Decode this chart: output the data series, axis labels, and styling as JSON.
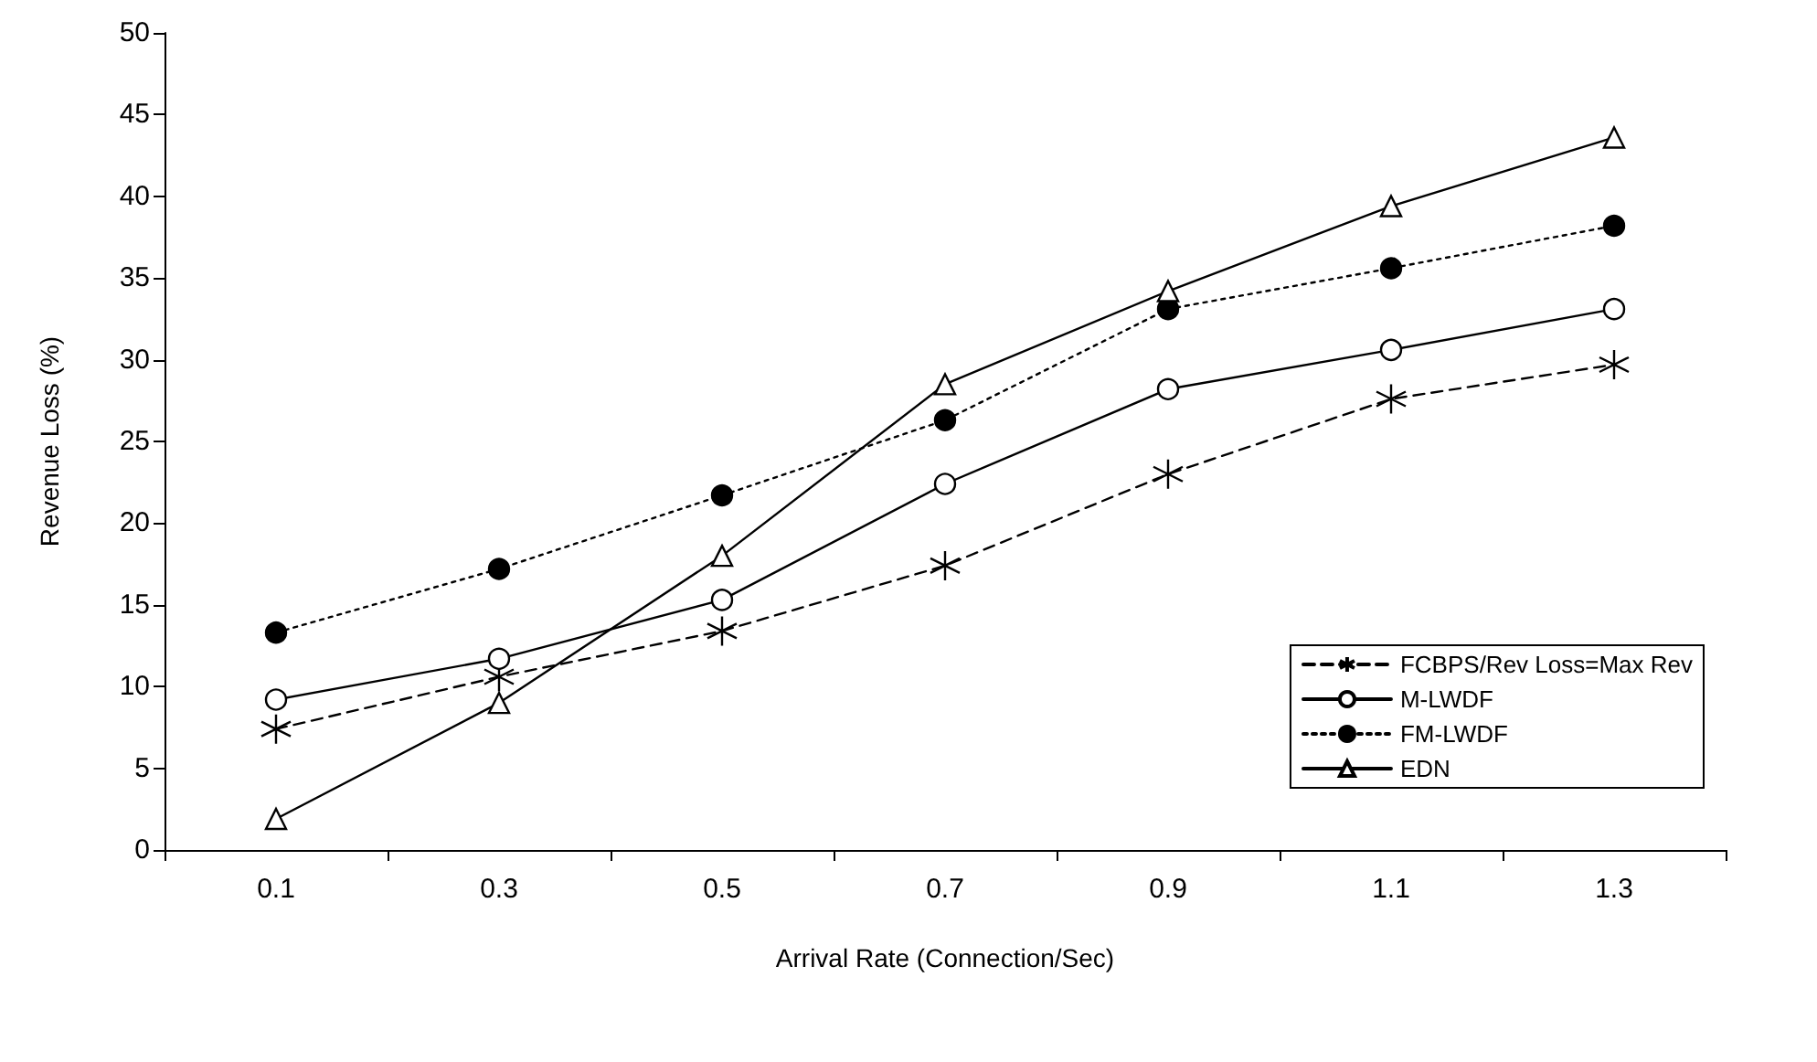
{
  "chart_data": {
    "type": "line",
    "xlabel": "Arrival Rate (Connection/Sec)",
    "ylabel": "Revenue Loss (%)",
    "categories": [
      "0.1",
      "0.3",
      "0.5",
      "0.7",
      "0.9",
      "1.1",
      "1.3"
    ],
    "ylim": [
      0,
      50
    ],
    "yticks": [
      0,
      5,
      10,
      15,
      20,
      25,
      30,
      35,
      40,
      45,
      50
    ],
    "grid": false,
    "legend": "bottom right",
    "series": [
      {
        "name": "FCBPS/Rev Loss=Max Rev",
        "color": "#000000",
        "marker": "star",
        "line_style": "dashed",
        "values": [
          7.4,
          10.6,
          13.4,
          17.4,
          23.0,
          27.6,
          29.7
        ]
      },
      {
        "name": "M-LWDF",
        "color": "#000000",
        "marker": "circle",
        "line_style": "solid",
        "values": [
          9.2,
          11.7,
          15.3,
          22.4,
          28.2,
          30.6,
          33.1
        ]
      },
      {
        "name": "FM-LWDF",
        "color": "#000000",
        "marker": "circle",
        "line_style": "dotted",
        "values": [
          13.3,
          17.2,
          21.7,
          26.3,
          33.1,
          35.6,
          38.2
        ]
      },
      {
        "name": "EDN",
        "color": "#000000",
        "marker": "triangle",
        "line_style": "solid",
        "values": [
          1.9,
          9.0,
          18.0,
          28.5,
          34.2,
          39.4,
          43.6
        ]
      }
    ]
  }
}
